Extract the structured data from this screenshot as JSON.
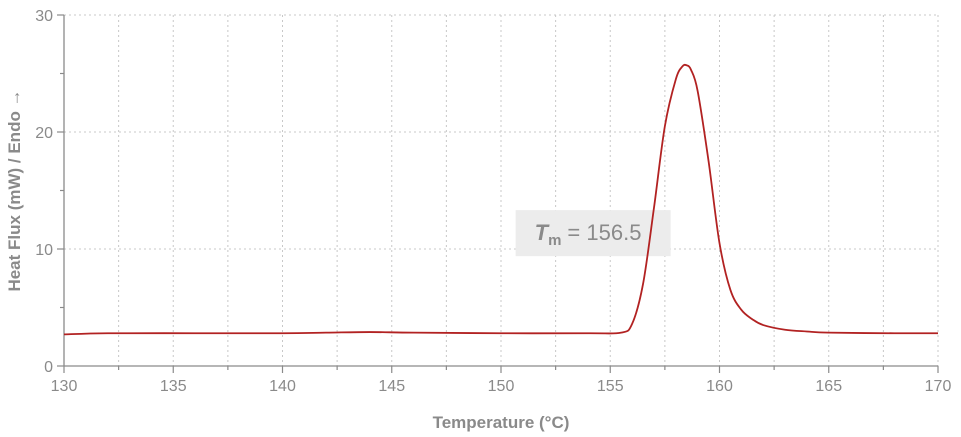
{
  "chart_data": {
    "type": "line",
    "title": "",
    "xlabel": "Temperature (°C)",
    "ylabel": "Heat Flux (mW) / Endo →",
    "xlim": [
      130,
      170
    ],
    "ylim": [
      0,
      30
    ],
    "xticks": [
      130,
      135,
      140,
      145,
      150,
      155,
      160,
      165,
      170
    ],
    "yticks": [
      0,
      10,
      20,
      30
    ],
    "grid": true,
    "colors": {
      "series": "#b22222",
      "axis": "#8a8a8a",
      "grid": "#c8c8c8",
      "annotation_bg": "#ececec"
    },
    "annotation": {
      "symbol": "T",
      "subscript": "m",
      "text": "= 156.5",
      "x": 152.5,
      "y": 10.5
    },
    "series": [
      {
        "x": [
          130,
          132,
          136,
          140,
          142,
          144,
          146,
          150,
          154,
          155.5,
          156,
          156.5,
          157,
          157.5,
          158,
          158.3,
          158.5,
          158.7,
          159,
          159.5,
          160,
          160.5,
          161,
          161.5,
          162,
          163,
          164,
          165,
          168,
          170
        ],
        "y": [
          2.7,
          2.8,
          2.8,
          2.8,
          2.85,
          2.9,
          2.85,
          2.8,
          2.8,
          2.85,
          3.6,
          7.0,
          13.5,
          20.5,
          24.5,
          25.6,
          25.7,
          25.3,
          23.5,
          17.5,
          10.5,
          6.5,
          4.8,
          4.0,
          3.5,
          3.1,
          2.95,
          2.85,
          2.8,
          2.8
        ]
      }
    ]
  }
}
